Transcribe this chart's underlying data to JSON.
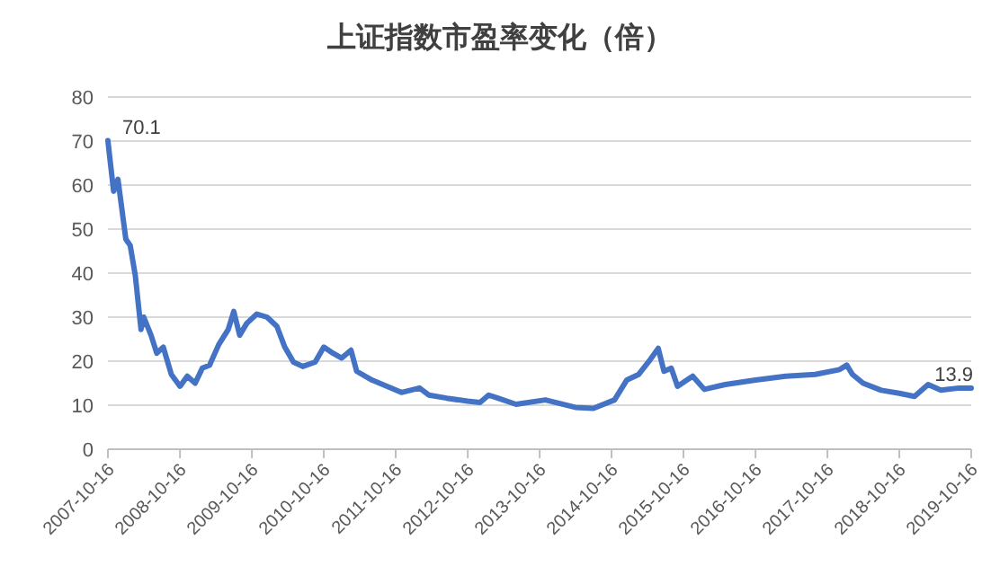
{
  "chart_data": {
    "type": "line",
    "title": "上证指数市盈率变化（倍）",
    "x": [
      "2007-10-16",
      "2007-10-24",
      "2007-11-14",
      "2007-12-06",
      "2007-12-24",
      "2008-01-15",
      "2008-02-06",
      "2008-03-03",
      "2008-04-01",
      "2008-04-15",
      "2008-05-22",
      "2008-06-20",
      "2008-07-23",
      "2008-09-02",
      "2008-10-16",
      "2008-11-22",
      "2009-01-01",
      "2009-02-06",
      "2009-03-15",
      "2009-05-01",
      "2009-06-18",
      "2009-07-16",
      "2009-08-15",
      "2009-09-20",
      "2009-11-10",
      "2010-01-01",
      "2010-02-20",
      "2010-04-01",
      "2010-05-15",
      "2010-07-01",
      "2010-09-02",
      "2010-10-16",
      "2010-12-02",
      "2011-01-15",
      "2011-03-03",
      "2011-04-01",
      "2011-06-18",
      "2011-09-02",
      "2011-11-14",
      "2012-02-14",
      "2012-04-01",
      "2012-07-01",
      "2012-10-16",
      "2012-12-17",
      "2013-01-30",
      "2013-03-18",
      "2013-06-18",
      "2013-11-14",
      "2014-04-15",
      "2014-07-16",
      "2014-10-31",
      "2015-01-01",
      "2015-03-03",
      "2015-05-01",
      "2015-06-10",
      "2015-07-09",
      "2015-08-15",
      "2015-09-16",
      "2015-12-02",
      "2016-01-30",
      "2016-05-15",
      "2016-10-16",
      "2017-03-18",
      "2017-08-15",
      "2017-12-17",
      "2018-01-22",
      "2018-02-20",
      "2018-04-15",
      "2018-07-16",
      "2018-10-16",
      "2019-01-01",
      "2019-03-11",
      "2019-05-15",
      "2019-08-15",
      "2019-10-16"
    ],
    "series": [
      {
        "color": "#4472c4",
        "values": [
          70.1,
          66.8,
          58.6,
          61.3,
          55.2,
          47.7,
          46.3,
          39.5,
          27.2,
          30,
          25.9,
          21.8,
          23.2,
          17,
          14.3,
          16.6,
          15,
          18.4,
          19.1,
          23.8,
          27.2,
          31.3,
          25.9,
          28.6,
          30.7,
          30,
          27.9,
          23.2,
          19.8,
          18.8,
          19.8,
          23.2,
          21.8,
          20.7,
          22.5,
          17.7,
          15.7,
          14.3,
          12.9,
          13.9,
          12.3,
          11.6,
          10.9,
          10.6,
          12.3,
          11.6,
          10.2,
          11.2,
          9.5,
          9.3,
          11.2,
          15.7,
          17,
          20.4,
          22.9,
          17.7,
          18.4,
          14.3,
          16.6,
          13.6,
          14.7,
          15.7,
          16.6,
          17,
          18.1,
          19.1,
          17,
          15,
          13.4,
          12.7,
          12,
          14.7,
          13.4,
          13.9,
          13.9
        ]
      }
    ],
    "xlim": [
      "2007-10-16",
      "2019-10-16"
    ],
    "xticks": [
      "2007-10-16",
      "2008-10-16",
      "2009-10-16",
      "2010-10-16",
      "2011-10-16",
      "2012-10-16",
      "2013-10-16",
      "2014-10-16",
      "2015-10-16",
      "2016-10-16",
      "2017-10-16",
      "2018-10-16",
      "2019-10-16"
    ],
    "ylim": [
      0,
      80
    ],
    "yticks": [
      0,
      10,
      20,
      30,
      40,
      50,
      60,
      70,
      80
    ],
    "grid": "y",
    "annotations": [
      {
        "text": "70.1",
        "x": "2007-10-16",
        "y": 70.1
      },
      {
        "text": "13.9",
        "x": "2019-10-16",
        "y": 13.9
      }
    ]
  }
}
